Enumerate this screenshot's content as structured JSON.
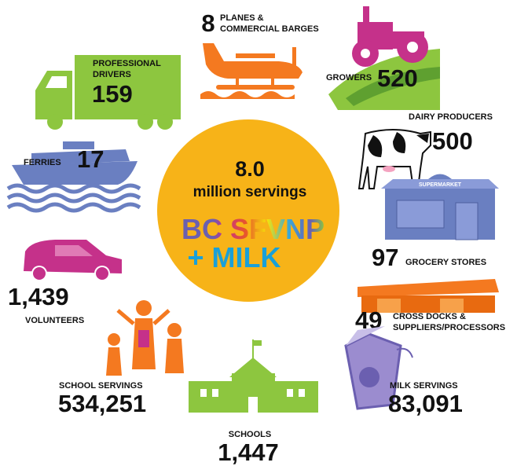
{
  "center": {
    "value": "8.0",
    "unit": "million servings",
    "logo_line1": "BC SFVNP",
    "logo_line2": "+ MILK"
  },
  "store_sign": "SUPERMARKET",
  "items": [
    {
      "number": "8",
      "label": [
        "PLANES &",
        "COMMERCIAL BARGES"
      ]
    },
    {
      "number": "520",
      "label": [
        "GROWERS"
      ]
    },
    {
      "number": "500",
      "label": [
        "DAIRY PRODUCERS"
      ]
    },
    {
      "number": "97",
      "label": [
        "GROCERY STORES"
      ]
    },
    {
      "number": "49",
      "label": [
        "CROSS DOCKS &",
        "SUPPLIERS/PROCESSORS"
      ]
    },
    {
      "number": "83,091",
      "label": [
        "MILK SERVINGS"
      ]
    },
    {
      "number": "1,447",
      "label": [
        "SCHOOLS"
      ]
    },
    {
      "number": "534,251",
      "label": [
        "SCHOOL SERVINGS"
      ]
    },
    {
      "number": "1,439",
      "label": [
        "VOLUNTEERS"
      ]
    },
    {
      "number": "17",
      "label": [
        "FERRIES"
      ]
    },
    {
      "number": "159",
      "label": [
        "PROFESSIONAL",
        "DRIVERS"
      ]
    }
  ]
}
